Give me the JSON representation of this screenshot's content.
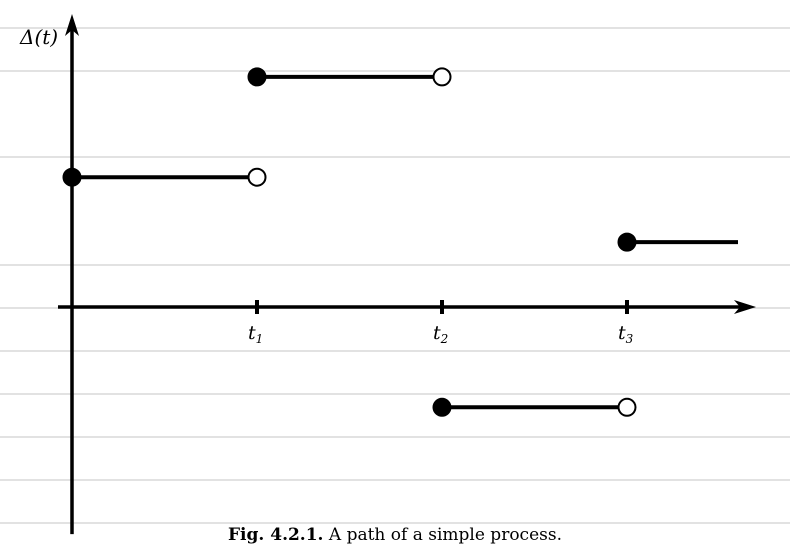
{
  "chart_data": {
    "type": "line",
    "title": "",
    "xlabel": "",
    "ylabel": "Δ(t)",
    "x_ticks": [
      {
        "name": "t",
        "sub": "1",
        "value": 1
      },
      {
        "name": "t",
        "sub": "2",
        "value": 2
      },
      {
        "name": "t",
        "sub": "3",
        "value": 3
      }
    ],
    "xlim": [
      0,
      3.6
    ],
    "ylim": [
      -3.9,
      5.1
    ],
    "segments": [
      {
        "x_start": 0,
        "x_end": 1,
        "y": 2.2,
        "start_closed": true,
        "end_closed": false
      },
      {
        "x_start": 1,
        "x_end": 2,
        "y": 3.9,
        "start_closed": true,
        "end_closed": false
      },
      {
        "x_start": 2,
        "x_end": 3,
        "y": -1.7,
        "start_closed": true,
        "end_closed": false
      },
      {
        "x_start": 3,
        "x_end": 3.6,
        "y": 1.1,
        "start_closed": true,
        "end_closed": null
      }
    ],
    "grid": "horizontal-lines",
    "legend": "none"
  },
  "caption": {
    "label": "Fig. 4.2.1.",
    "text": "A path of a simple process."
  }
}
